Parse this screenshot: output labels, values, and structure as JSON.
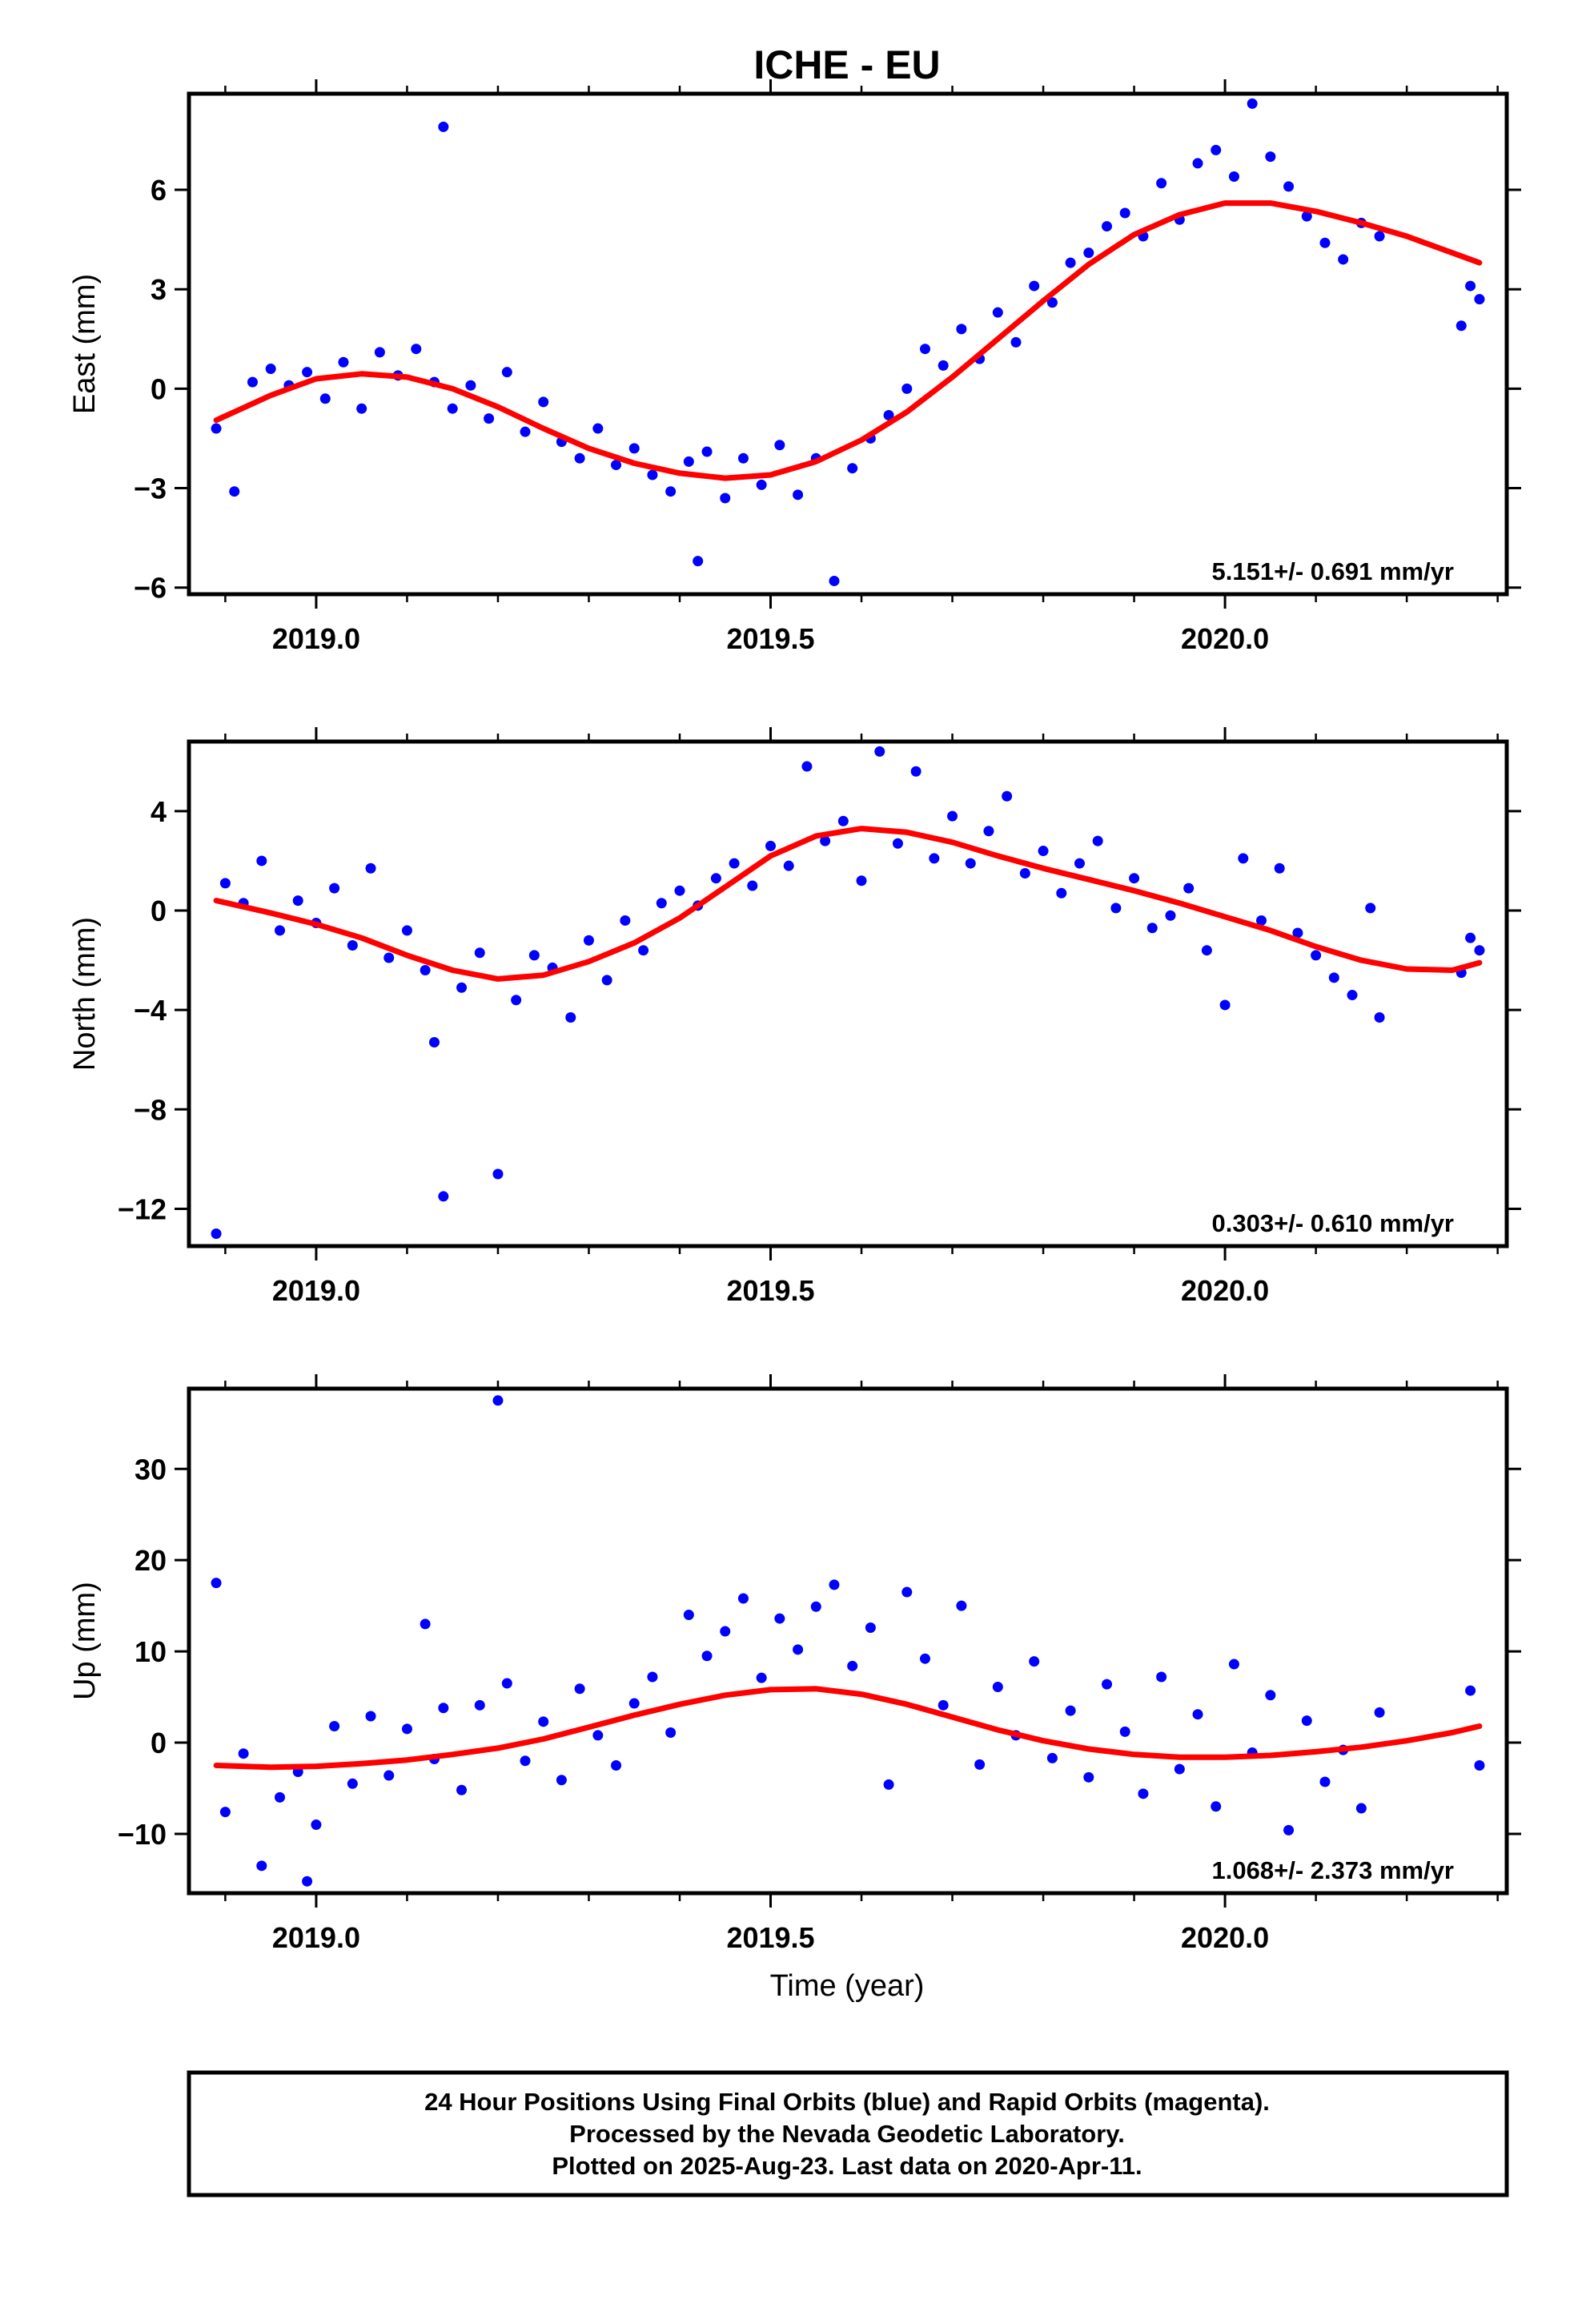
{
  "title": "ICHE - EU",
  "x_axis_label": "Time (year)",
  "footer": {
    "line1": "24 Hour Positions Using Final Orbits (blue) and Rapid Orbits (magenta).",
    "line2": "Processed by the Nevada Geodetic Laboratory.",
    "line3": "Plotted on 2025-Aug-23. Last data on 2020-Apr-11."
  },
  "colors": {
    "points": "#0000ff",
    "fit": "#ff0000",
    "axes": "#000000"
  },
  "chart_data": [
    {
      "type": "scatter",
      "ylabel": "East (mm)",
      "rate_label": "5.151+/- 0.691 mm/yr",
      "xlim": [
        2018.86,
        2020.31
      ],
      "ylim": [
        -6.2,
        8.9
      ],
      "xticks": [
        2019.0,
        2019.5,
        2020.0
      ],
      "yticks": [
        -6,
        -3,
        0,
        3,
        6
      ],
      "ytick_labels": [
        "−6",
        "−3",
        "0",
        "3",
        "6"
      ],
      "grid": false,
      "series": [
        {
          "kind": "points",
          "x": [
            2018.89,
            2018.91,
            2018.93,
            2018.95,
            2018.97,
            2018.99,
            2019.01,
            2019.03,
            2019.05,
            2019.07,
            2019.09,
            2019.11,
            2019.13,
            2019.14,
            2019.15,
            2019.17,
            2019.19,
            2019.21,
            2019.23,
            2019.25,
            2019.27,
            2019.29,
            2019.31,
            2019.33,
            2019.35,
            2019.37,
            2019.39,
            2019.41,
            2019.42,
            2019.43,
            2019.45,
            2019.47,
            2019.49,
            2019.51,
            2019.53,
            2019.55,
            2019.57,
            2019.59,
            2019.61,
            2019.63,
            2019.65,
            2019.67,
            2019.69,
            2019.71,
            2019.73,
            2019.75,
            2019.77,
            2019.79,
            2019.81,
            2019.83,
            2019.85,
            2019.87,
            2019.89,
            2019.91,
            2019.93,
            2019.95,
            2019.97,
            2019.99,
            2020.01,
            2020.03,
            2020.05,
            2020.07,
            2020.09,
            2020.11,
            2020.13,
            2020.15,
            2020.17,
            2020.26,
            2020.27,
            2020.28
          ],
          "y": [
            -1.2,
            -3.1,
            0.2,
            0.6,
            0.1,
            0.5,
            -0.3,
            0.8,
            -0.6,
            1.1,
            0.4,
            1.2,
            0.2,
            7.9,
            -0.6,
            0.1,
            -0.9,
            0.5,
            -1.3,
            -0.4,
            -1.6,
            -2.1,
            -1.2,
            -2.3,
            -1.8,
            -2.6,
            -3.1,
            -2.2,
            -5.2,
            -1.9,
            -3.3,
            -2.1,
            -2.9,
            -1.7,
            -3.2,
            -2.1,
            -5.8,
            -2.4,
            -1.5,
            -0.8,
            0.0,
            1.2,
            0.7,
            1.8,
            0.9,
            2.3,
            1.4,
            3.1,
            2.6,
            3.8,
            4.1,
            4.9,
            5.3,
            4.6,
            6.2,
            5.1,
            6.8,
            7.2,
            6.4,
            8.6,
            7.0,
            6.1,
            5.2,
            4.4,
            3.9,
            5.0,
            4.6,
            1.9,
            3.1,
            2.7
          ]
        },
        {
          "kind": "fit",
          "x": [
            2018.89,
            2018.95,
            2019.0,
            2019.05,
            2019.1,
            2019.15,
            2019.2,
            2019.25,
            2019.3,
            2019.35,
            2019.4,
            2019.45,
            2019.5,
            2019.55,
            2019.6,
            2019.65,
            2019.7,
            2019.75,
            2019.8,
            2019.85,
            2019.9,
            2019.95,
            2020.0,
            2020.05,
            2020.1,
            2020.15,
            2020.2,
            2020.25,
            2020.28
          ],
          "y": [
            -0.95,
            -0.2,
            0.3,
            0.45,
            0.35,
            0.0,
            -0.55,
            -1.2,
            -1.8,
            -2.25,
            -2.55,
            -2.7,
            -2.6,
            -2.2,
            -1.55,
            -0.7,
            0.35,
            1.5,
            2.65,
            3.75,
            4.65,
            5.25,
            5.6,
            5.6,
            5.35,
            5.0,
            4.6,
            4.1,
            3.8
          ]
        }
      ]
    },
    {
      "type": "scatter",
      "ylabel": "North (mm)",
      "rate_label": "0.303+/- 0.610 mm/yr",
      "xlim": [
        2018.86,
        2020.31
      ],
      "ylim": [
        -13.5,
        6.8
      ],
      "xticks": [
        2019.0,
        2019.5,
        2020.0
      ],
      "yticks": [
        -12,
        -8,
        -4,
        0,
        4
      ],
      "ytick_labels": [
        "−12",
        "−8",
        "−4",
        "0",
        "4"
      ],
      "grid": false,
      "series": [
        {
          "kind": "points",
          "x": [
            2018.89,
            2018.9,
            2018.92,
            2018.94,
            2018.96,
            2018.98,
            2019.0,
            2019.02,
            2019.04,
            2019.06,
            2019.08,
            2019.1,
            2019.12,
            2019.13,
            2019.14,
            2019.16,
            2019.18,
            2019.2,
            2019.22,
            2019.24,
            2019.26,
            2019.28,
            2019.3,
            2019.32,
            2019.34,
            2019.36,
            2019.38,
            2019.4,
            2019.42,
            2019.44,
            2019.46,
            2019.48,
            2019.5,
            2019.52,
            2019.54,
            2019.56,
            2019.58,
            2019.6,
            2019.62,
            2019.64,
            2019.66,
            2019.68,
            2019.7,
            2019.72,
            2019.74,
            2019.76,
            2019.78,
            2019.8,
            2019.82,
            2019.84,
            2019.86,
            2019.88,
            2019.9,
            2019.92,
            2019.94,
            2019.96,
            2019.98,
            2020.0,
            2020.02,
            2020.04,
            2020.06,
            2020.08,
            2020.1,
            2020.12,
            2020.14,
            2020.16,
            2020.17,
            2020.26,
            2020.27,
            2020.28
          ],
          "y": [
            -13.0,
            1.1,
            0.3,
            2.0,
            -0.8,
            0.4,
            -0.5,
            0.9,
            -1.4,
            1.7,
            -1.9,
            -0.8,
            -2.4,
            -5.3,
            -11.5,
            -3.1,
            -1.7,
            -10.6,
            -3.6,
            -1.8,
            -2.3,
            -4.3,
            -1.2,
            -2.8,
            -0.4,
            -1.6,
            0.3,
            0.8,
            0.2,
            1.3,
            1.9,
            1.0,
            2.6,
            1.8,
            5.8,
            2.8,
            3.6,
            1.2,
            6.4,
            2.7,
            5.6,
            2.1,
            3.8,
            1.9,
            3.2,
            4.6,
            1.5,
            2.4,
            0.7,
            1.9,
            2.8,
            0.1,
            1.3,
            -0.7,
            -0.2,
            0.9,
            -1.6,
            -3.8,
            2.1,
            -0.4,
            1.7,
            -0.9,
            -1.8,
            -2.7,
            -3.4,
            0.1,
            -4.3,
            -2.5,
            -1.1,
            -1.6
          ]
        },
        {
          "kind": "fit",
          "x": [
            2018.89,
            2018.95,
            2019.0,
            2019.05,
            2019.1,
            2019.15,
            2019.2,
            2019.25,
            2019.3,
            2019.35,
            2019.4,
            2019.45,
            2019.5,
            2019.55,
            2019.6,
            2019.65,
            2019.7,
            2019.75,
            2019.8,
            2019.85,
            2019.9,
            2019.95,
            2020.0,
            2020.05,
            2020.1,
            2020.15,
            2020.2,
            2020.25,
            2020.28
          ],
          "y": [
            0.4,
            -0.1,
            -0.55,
            -1.1,
            -1.8,
            -2.4,
            -2.75,
            -2.6,
            -2.05,
            -1.3,
            -0.3,
            0.95,
            2.2,
            3.0,
            3.3,
            3.15,
            2.75,
            2.2,
            1.7,
            1.25,
            0.8,
            0.3,
            -0.25,
            -0.8,
            -1.45,
            -2.0,
            -2.35,
            -2.4,
            -2.1
          ]
        }
      ]
    },
    {
      "type": "scatter",
      "ylabel": "Up (mm)",
      "rate_label": "1.068+/- 2.373 mm/yr",
      "xlim": [
        2018.86,
        2020.31
      ],
      "ylim": [
        -16.5,
        38.8
      ],
      "xticks": [
        2019.0,
        2019.5,
        2020.0
      ],
      "yticks": [
        -10,
        0,
        10,
        20,
        30
      ],
      "ytick_labels": [
        "−10",
        "0",
        "10",
        "20",
        "30"
      ],
      "grid": false,
      "series": [
        {
          "kind": "points",
          "x": [
            2018.89,
            2018.9,
            2018.92,
            2018.94,
            2018.96,
            2018.98,
            2018.99,
            2019.0,
            2019.02,
            2019.04,
            2019.06,
            2019.08,
            2019.1,
            2019.12,
            2019.13,
            2019.14,
            2019.16,
            2019.18,
            2019.2,
            2019.21,
            2019.23,
            2019.25,
            2019.27,
            2019.29,
            2019.31,
            2019.33,
            2019.35,
            2019.37,
            2019.39,
            2019.41,
            2019.43,
            2019.45,
            2019.47,
            2019.49,
            2019.51,
            2019.53,
            2019.55,
            2019.57,
            2019.59,
            2019.61,
            2019.63,
            2019.65,
            2019.67,
            2019.69,
            2019.71,
            2019.73,
            2019.75,
            2019.77,
            2019.79,
            2019.81,
            2019.83,
            2019.85,
            2019.87,
            2019.89,
            2019.91,
            2019.93,
            2019.95,
            2019.97,
            2019.99,
            2020.01,
            2020.03,
            2020.05,
            2020.07,
            2020.09,
            2020.11,
            2020.13,
            2020.15,
            2020.17,
            2020.27,
            2020.28
          ],
          "y": [
            17.5,
            -7.6,
            -1.2,
            -13.5,
            -6.0,
            -3.2,
            -15.2,
            -9.0,
            1.8,
            -4.5,
            2.9,
            -3.6,
            1.5,
            13.0,
            -1.8,
            3.8,
            -5.2,
            4.1,
            37.5,
            6.5,
            -2.0,
            2.3,
            -4.1,
            5.9,
            0.8,
            -2.5,
            4.3,
            7.2,
            1.1,
            14.0,
            9.5,
            12.2,
            15.8,
            7.1,
            13.6,
            10.2,
            14.9,
            17.3,
            8.4,
            12.6,
            -4.6,
            16.5,
            9.2,
            4.1,
            15.0,
            -2.4,
            6.1,
            0.8,
            8.9,
            -1.7,
            3.5,
            -3.8,
            6.4,
            1.2,
            -5.6,
            7.2,
            -2.9,
            3.1,
            -7.0,
            8.6,
            -1.1,
            5.2,
            -9.6,
            2.4,
            -4.3,
            -0.8,
            -7.2,
            3.3,
            5.7,
            -2.5
          ]
        },
        {
          "kind": "fit",
          "x": [
            2018.89,
            2018.95,
            2019.0,
            2019.05,
            2019.1,
            2019.15,
            2019.2,
            2019.25,
            2019.3,
            2019.35,
            2019.4,
            2019.45,
            2019.5,
            2019.55,
            2019.6,
            2019.65,
            2019.7,
            2019.75,
            2019.8,
            2019.85,
            2019.9,
            2019.95,
            2020.0,
            2020.05,
            2020.1,
            2020.15,
            2020.2,
            2020.25,
            2020.28
          ],
          "y": [
            -2.5,
            -2.7,
            -2.6,
            -2.3,
            -1.9,
            -1.3,
            -0.6,
            0.4,
            1.7,
            3.0,
            4.2,
            5.2,
            5.8,
            5.9,
            5.3,
            4.2,
            2.8,
            1.4,
            0.2,
            -0.7,
            -1.3,
            -1.6,
            -1.6,
            -1.4,
            -1.0,
            -0.5,
            0.2,
            1.1,
            1.8
          ]
        }
      ]
    }
  ]
}
